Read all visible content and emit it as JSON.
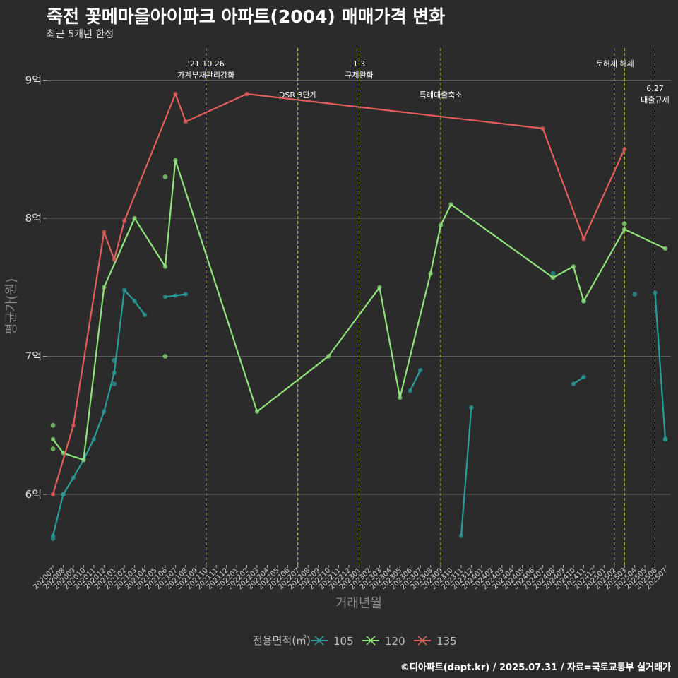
{
  "title": "죽전 꽃메마을아이파크 아파트(2004) 매매가격 변화",
  "subtitle": "최근 5개년 한정",
  "caption": "©디아파트(dapt.kr) / 2025.07.31 / 자료=국토교통부 실거래가",
  "chart_data": {
    "type": "line",
    "xlabel": "거래년월",
    "ylabel": "평균가(원)",
    "ylim": [
      5.45,
      9.25
    ],
    "yticks": [
      {
        "value": 6,
        "label": "6억"
      },
      {
        "value": 7,
        "label": "7억"
      },
      {
        "value": 8,
        "label": "8억"
      },
      {
        "value": 9,
        "label": "9억"
      }
    ],
    "categories": [
      "202007",
      "202008",
      "202009",
      "202010",
      "202011",
      "202012",
      "202101",
      "202102",
      "202103",
      "202104",
      "202105",
      "202106",
      "202107",
      "202108",
      "202109",
      "202110",
      "202111",
      "202112",
      "202201",
      "202202",
      "202203",
      "202204",
      "202205",
      "202206",
      "202207",
      "202208",
      "202209",
      "202210",
      "202211",
      "202212",
      "202301",
      "202302",
      "202303",
      "202304",
      "202305",
      "202306",
      "202307",
      "202308",
      "202309",
      "202310",
      "202311",
      "202312",
      "202401",
      "202402",
      "202403",
      "202404",
      "202405",
      "202406",
      "202407",
      "202408",
      "202409",
      "202410",
      "202411",
      "202412",
      "202501",
      "202502",
      "202503",
      "202504",
      "202505",
      "202506",
      "202507"
    ],
    "legend_title": "전용면적(㎡)",
    "legend_position": "bottom",
    "series": [
      {
        "name": "105",
        "color": "#2a9d9a",
        "segments": [
          [
            [
              "202007",
              5.7
            ],
            [
              "202008",
              6.0
            ],
            [
              "202009",
              6.12
            ],
            [
              "202010",
              6.25
            ],
            [
              "202011",
              6.4
            ],
            [
              "202012",
              6.6
            ],
            [
              "202101",
              6.88
            ],
            [
              "202102",
              7.48
            ],
            [
              "202103",
              7.4
            ],
            [
              "202104",
              7.3
            ]
          ],
          [
            [
              "202106",
              7.43
            ],
            [
              "202107",
              7.44
            ],
            [
              "202108",
              7.45
            ]
          ],
          [
            [
              "202306",
              6.75
            ],
            [
              "202307",
              6.9
            ]
          ],
          [
            [
              "202311",
              5.7
            ],
            [
              "202312",
              6.63
            ]
          ],
          [
            [
              "202410",
              6.8
            ],
            [
              "202411",
              6.85
            ]
          ],
          [
            [
              "202506",
              7.46
            ],
            [
              "202507",
              6.4
            ]
          ]
        ],
        "points": [
          [
            "202007",
            5.68
          ],
          [
            "202008",
            6.0
          ],
          [
            "202101",
            6.97
          ],
          [
            "202101",
            6.8
          ],
          [
            "202408",
            7.6
          ],
          [
            "202504",
            7.45
          ],
          [
            "202507",
            6.4
          ],
          [
            "202411",
            7.4
          ]
        ]
      },
      {
        "name": "120",
        "color": "#8fe37a",
        "segments": [
          [
            [
              "202007",
              6.4
            ],
            [
              "202008",
              6.3
            ],
            [
              "202010",
              6.25
            ],
            [
              "202012",
              7.5
            ],
            [
              "202103",
              8.0
            ],
            [
              "202106",
              7.65
            ],
            [
              "202107",
              8.42
            ],
            [
              "202203",
              6.6
            ],
            [
              "202210",
              7.0
            ],
            [
              "202303",
              7.5
            ],
            [
              "202305",
              6.7
            ],
            [
              "202308",
              7.6
            ],
            [
              "202309",
              7.95
            ],
            [
              "202310",
              8.1
            ],
            [
              "202408",
              7.57
            ],
            [
              "202410",
              7.65
            ],
            [
              "202411",
              7.4
            ],
            [
              "202503",
              7.92
            ],
            [
              "202507",
              7.78
            ]
          ]
        ],
        "points": [
          [
            "202007",
            6.5
          ],
          [
            "202007",
            6.33
          ],
          [
            "202106",
            8.3
          ],
          [
            "202106",
            7.0
          ],
          [
            "202503",
            7.96
          ]
        ]
      },
      {
        "name": "135",
        "color": "#e35d5d",
        "segments": [
          [
            [
              "202007",
              6.0
            ],
            [
              "202009",
              6.5
            ],
            [
              "202012",
              7.9
            ],
            [
              "202101",
              7.7
            ],
            [
              "202102",
              7.98
            ],
            [
              "202107",
              8.9
            ],
            [
              "202108",
              8.7
            ],
            [
              "202202",
              8.9
            ],
            [
              "202407",
              8.65
            ],
            [
              "202411",
              7.85
            ],
            [
              "202503",
              8.5
            ]
          ]
        ],
        "points": []
      }
    ],
    "annotations": [
      {
        "x": "202110",
        "lines": [
          "'21.10.26",
          "가계부채관리강화"
        ],
        "level": 1
      },
      {
        "x": "202207",
        "lines": [
          "DSR 3단계"
        ],
        "level": 2
      },
      {
        "x": "202301",
        "lines": [
          "1.3",
          "규제완화"
        ],
        "level": 1
      },
      {
        "x": "202309",
        "lines": [
          "특례대출축소"
        ],
        "level": 2
      },
      {
        "x": "202502",
        "lines": [
          "토허제 해제"
        ],
        "level": 1,
        "anchor": "center-right"
      },
      {
        "x": "202503",
        "lines": [],
        "level": 1
      },
      {
        "x": "202506",
        "lines": [
          "6.27",
          "대출규제"
        ],
        "level": 3
      }
    ]
  }
}
